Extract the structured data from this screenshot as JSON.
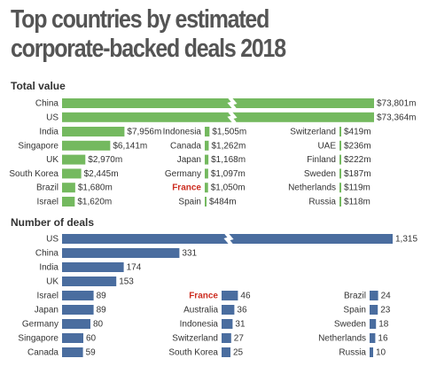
{
  "title_line1": "Top countries by estimated",
  "title_line2": "corporate-backed deals 2018",
  "colors": {
    "value": "#74b95f",
    "deals": "#4a6d9f",
    "highlight": "#cc2b1f",
    "text": "#333333"
  },
  "chart_data": [
    {
      "type": "bar",
      "title": "Total value",
      "unit_prefix": "$",
      "unit_suffix": "m",
      "broken_axis_bars": [
        "China",
        "US"
      ],
      "highlight": "France",
      "series": [
        {
          "name": "",
          "categories": [
            "China",
            "US"
          ],
          "values": [
            73801,
            73364
          ],
          "labels": [
            "$73,801m",
            "$73,364m"
          ]
        },
        {
          "name": "",
          "categories": [
            "India",
            "Singapore",
            "UK",
            "South Korea",
            "Brazil",
            "Israel"
          ],
          "values": [
            7956,
            6141,
            2970,
            2445,
            1680,
            1620
          ],
          "labels": [
            "$7,956m",
            "$6,141m",
            "$2,970m",
            "$2,445m",
            "$1,680m",
            "$1,620m"
          ]
        },
        {
          "name": "",
          "categories": [
            "Indonesia",
            "Canada",
            "Japan",
            "Germany",
            "France",
            "Spain"
          ],
          "values": [
            1505,
            1262,
            1168,
            1097,
            1050,
            484
          ],
          "labels": [
            "$1,505m",
            "$1,262m",
            "$1,168m",
            "$1,097m",
            "$1,050m",
            "$484m"
          ]
        },
        {
          "name": "",
          "categories": [
            "Switzerland",
            "UAE",
            "Finland",
            "Sweden",
            "Netherlands",
            "Russia"
          ],
          "values": [
            419,
            236,
            222,
            187,
            119,
            118
          ],
          "labels": [
            "$419m",
            "$236m",
            "$222m",
            "$187m",
            "$119m",
            "$118m"
          ]
        }
      ]
    },
    {
      "type": "bar",
      "title": "Number of deals",
      "broken_axis_bars": [
        "US"
      ],
      "highlight": "France",
      "series": [
        {
          "name": "",
          "categories": [
            "US",
            "China",
            "India",
            "UK"
          ],
          "values": [
            1315,
            331,
            174,
            153
          ],
          "labels": [
            "1,315",
            "331",
            "174",
            "153"
          ]
        },
        {
          "name": "",
          "categories": [
            "Israel",
            "Japan",
            "Germany",
            "Singapore",
            "Canada"
          ],
          "values": [
            89,
            89,
            80,
            60,
            59
          ],
          "labels": [
            "89",
            "89",
            "80",
            "60",
            "59"
          ]
        },
        {
          "name": "",
          "categories": [
            "France",
            "Australia",
            "Indonesia",
            "Switzerland",
            "South Korea"
          ],
          "values": [
            46,
            36,
            31,
            27,
            25
          ],
          "labels": [
            "46",
            "36",
            "31",
            "27",
            "25"
          ]
        },
        {
          "name": "",
          "categories": [
            "Brazil",
            "Spain",
            "Sweden",
            "Netherlands",
            "Russia"
          ],
          "values": [
            24,
            23,
            18,
            16,
            10
          ],
          "labels": [
            "24",
            "23",
            "18",
            "16",
            "10"
          ]
        }
      ]
    }
  ]
}
